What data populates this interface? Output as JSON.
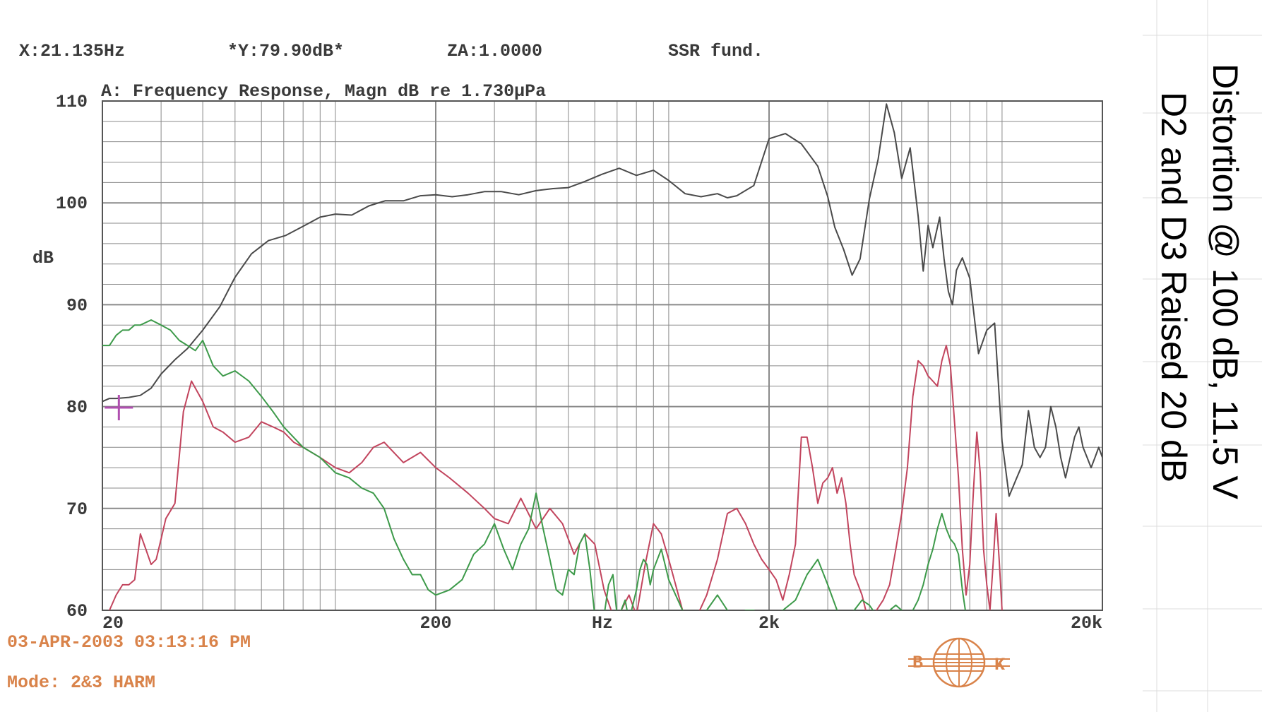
{
  "readouts": {
    "x": "X:21.135Hz",
    "y": "*Y:79.90dB*",
    "za": "ZA:1.0000",
    "mode_label": "SSR fund."
  },
  "footer": {
    "datetime": "03-APR-2003 03:13:16 PM",
    "mode": "Mode: 2&3 HARM",
    "logo_left": "B",
    "logo_right": "K"
  },
  "side_text": {
    "line1": "Distortion @ 100 dB, 11.5 V",
    "line2": "D2 and D3 Raised 20 dB"
  },
  "colors": {
    "grid": "#8a8a8a",
    "fundamental": "#4a4a4a",
    "d2": "#c2455e",
    "d3": "#3d9a4a",
    "cursor": "#b04fb0",
    "annotation": "#d9834a"
  },
  "chart_data": {
    "type": "line",
    "title": "A: Frequency Response, Magn dB re 1.730µPa",
    "xlabel": "Hz",
    "ylabel": "dB",
    "x_scale": "log",
    "xlim": [
      20,
      20000
    ],
    "ylim": [
      60,
      110
    ],
    "x_ticks": [
      {
        "value": 20,
        "label": "20"
      },
      {
        "value": 200,
        "label": "200"
      },
      {
        "value": 2000,
        "label": "2k"
      },
      {
        "value": 20000,
        "label": "20k"
      }
    ],
    "y_ticks": [
      {
        "value": 110,
        "label": "110"
      },
      {
        "value": 100,
        "label": "100"
      },
      {
        "value": 90,
        "label": "90"
      },
      {
        "value": 80,
        "label": "80"
      },
      {
        "value": 70,
        "label": "70"
      },
      {
        "value": 60,
        "label": "60"
      }
    ],
    "grid": true,
    "cursor": {
      "x": 21.135,
      "y": 79.9
    },
    "series": [
      {
        "key": "fundamental",
        "x": [
          20,
          21,
          22,
          24,
          26,
          28,
          30,
          33,
          36,
          40,
          45,
          50,
          56,
          63,
          71,
          80,
          90,
          100,
          112,
          126,
          141,
          160,
          180,
          200,
          224,
          250,
          280,
          315,
          355,
          400,
          450,
          500,
          560,
          630,
          710,
          800,
          900,
          1000,
          1120,
          1250,
          1400,
          1500,
          1600,
          1800,
          2000,
          2240,
          2500,
          2800,
          3000,
          3150,
          3350,
          3550,
          3750,
          4000,
          4250,
          4500,
          4750,
          5000,
          5300,
          5600,
          5800,
          6000,
          6200,
          6500,
          6700,
          6900,
          7100,
          7300,
          7600,
          8000,
          8500,
          9000,
          9500,
          10000,
          10500,
          11000,
          11500,
          12000,
          12500,
          13000,
          13500,
          14000,
          14500,
          15000,
          15500,
          16000,
          16500,
          17000,
          17500,
          18000,
          18500,
          19000,
          19500,
          20000
        ],
        "y": [
          80.5,
          80.8,
          80.8,
          80.9,
          81.1,
          81.8,
          83.2,
          84.6,
          85.7,
          87.5,
          89.8,
          92.7,
          95.0,
          96.3,
          96.8,
          97.7,
          98.6,
          98.9,
          98.8,
          99.7,
          100.2,
          100.2,
          100.7,
          100.8,
          100.6,
          100.8,
          101.1,
          101.1,
          100.8,
          101.2,
          101.4,
          101.5,
          102.1,
          102.8,
          103.4,
          102.7,
          103.2,
          102.2,
          100.9,
          100.6,
          100.9,
          100.5,
          100.7,
          101.7,
          106.3,
          106.8,
          105.8,
          103.6,
          100.6,
          97.6,
          95.4,
          92.9,
          94.5,
          100.4,
          104.3,
          109.7,
          106.9,
          102.4,
          105.4,
          98.7,
          93.3,
          97.8,
          95.6,
          98.6,
          94.5,
          91.3,
          90.0,
          93.4,
          94.6,
          92.6,
          85.2,
          87.5,
          88.2,
          76.6,
          71.2,
          72.8,
          74.3,
          79.6,
          76.0,
          75.0,
          76.0,
          80.0,
          78.0,
          75.0,
          73.0,
          75.0,
          77.0,
          78.0,
          76.0,
          75.0,
          74.0,
          75.0,
          76.0,
          75.0
        ]
      },
      {
        "key": "d2",
        "x": [
          20,
          21,
          22,
          23,
          24,
          25,
          26,
          27,
          28,
          29,
          30,
          31,
          33,
          35,
          37,
          40,
          43,
          46,
          50,
          55,
          60,
          65,
          70,
          75,
          80,
          90,
          100,
          110,
          120,
          130,
          140,
          160,
          180,
          200,
          220,
          250,
          280,
          300,
          330,
          360,
          400,
          440,
          480,
          520,
          560,
          600,
          640,
          680,
          720,
          760,
          800,
          850,
          900,
          950,
          1000,
          1100,
          1200,
          1300,
          1400,
          1500,
          1600,
          1700,
          1800,
          1900,
          2000,
          2100,
          2200,
          2300,
          2400,
          2500,
          2600,
          2700,
          2800,
          2900,
          3000,
          3100,
          3200,
          3300,
          3400,
          3500,
          3600,
          3700,
          3800,
          3900,
          4000,
          4200,
          4400,
          4600,
          4800,
          5000,
          5200,
          5400,
          5600,
          5800,
          6000,
          6200,
          6400,
          6600,
          6800,
          7000,
          7200,
          7400,
          7600,
          7800,
          8000,
          8200,
          8400,
          8600,
          8800,
          9000,
          9200,
          9400,
          9600,
          9800,
          10000
        ],
        "y": [
          59.5,
          60.0,
          61.5,
          62.5,
          62.5,
          63.0,
          67.5,
          66.0,
          64.5,
          65.0,
          67.0,
          69.0,
          70.5,
          79.5,
          82.5,
          80.5,
          78.0,
          77.5,
          76.5,
          77.0,
          78.5,
          78.0,
          77.5,
          76.5,
          76.0,
          75.0,
          74.0,
          73.5,
          74.5,
          76.0,
          76.5,
          74.5,
          75.5,
          74.0,
          73.0,
          71.5,
          70.0,
          69.0,
          68.5,
          71.0,
          68.0,
          70.0,
          68.5,
          65.5,
          67.5,
          66.5,
          62.0,
          59.5,
          60.0,
          61.5,
          59.5,
          64.5,
          68.5,
          67.5,
          65.0,
          60.0,
          59.0,
          61.5,
          65.0,
          69.5,
          70.0,
          68.5,
          66.5,
          65.0,
          64.0,
          63.0,
          61.0,
          63.5,
          66.5,
          77.0,
          77.0,
          74.0,
          70.5,
          72.5,
          73.0,
          74.0,
          71.5,
          73.0,
          70.5,
          66.5,
          63.5,
          62.5,
          61.5,
          60.0,
          59.5,
          60.0,
          61.0,
          62.5,
          66.0,
          69.5,
          74.0,
          81.0,
          84.5,
          84.0,
          83.0,
          82.5,
          82.0,
          84.5,
          86.0,
          84.0,
          78.5,
          73.0,
          66.0,
          61.5,
          64.5,
          71.5,
          77.5,
          73.5,
          66.0,
          62.5,
          60.0,
          64.5,
          69.5,
          65.0,
          60.0
        ]
      },
      {
        "key": "d3",
        "x": [
          20,
          21,
          22,
          23,
          24,
          25,
          26,
          28,
          30,
          32,
          34,
          36,
          38,
          40,
          43,
          46,
          50,
          55,
          60,
          65,
          70,
          80,
          90,
          100,
          110,
          120,
          130,
          140,
          150,
          160,
          170,
          180,
          190,
          200,
          220,
          240,
          260,
          280,
          300,
          320,
          340,
          360,
          380,
          400,
          420,
          440,
          460,
          480,
          500,
          520,
          540,
          560,
          580,
          600,
          620,
          640,
          660,
          680,
          700,
          720,
          740,
          760,
          780,
          800,
          820,
          840,
          860,
          880,
          900,
          950,
          1000,
          1100,
          1200,
          1300,
          1400,
          1500,
          1600,
          1700,
          1800,
          1900,
          2000,
          2200,
          2400,
          2600,
          2800,
          3000,
          3200,
          3400,
          3600,
          3800,
          4000,
          4200,
          4400,
          4600,
          4800,
          5000,
          5200,
          5400,
          5600,
          5800,
          6000,
          6200,
          6400,
          6600,
          6800,
          7000,
          7200,
          7400,
          7600,
          7800,
          8000
        ],
        "y": [
          86.0,
          86.0,
          87.0,
          87.5,
          87.5,
          88.0,
          88.0,
          88.5,
          88.0,
          87.5,
          86.5,
          86.0,
          85.5,
          86.5,
          84.0,
          83.0,
          83.5,
          82.5,
          81.0,
          79.5,
          78.0,
          76.0,
          75.0,
          73.5,
          73.0,
          72.0,
          71.5,
          70.0,
          67.0,
          65.0,
          63.5,
          63.5,
          62.0,
          61.5,
          62.0,
          63.0,
          65.5,
          66.5,
          68.5,
          66.0,
          64.0,
          66.5,
          68.0,
          71.5,
          68.0,
          65.0,
          62.0,
          61.5,
          64.0,
          63.5,
          66.5,
          67.5,
          64.0,
          59.5,
          60.0,
          59.5,
          62.5,
          63.5,
          59.5,
          60.0,
          61.0,
          59.0,
          60.5,
          62.0,
          64.0,
          65.0,
          64.5,
          62.5,
          64.0,
          66.0,
          63.0,
          60.0,
          59.0,
          60.0,
          61.5,
          60.0,
          59.0,
          60.0,
          60.0,
          59.5,
          59.5,
          60.0,
          61.0,
          63.5,
          65.0,
          62.5,
          60.0,
          59.5,
          60.0,
          61.0,
          60.5,
          59.5,
          59.0,
          60.0,
          60.5,
          60.0,
          59.5,
          60.0,
          61.0,
          62.5,
          64.5,
          66.0,
          68.0,
          69.5,
          68.0,
          67.0,
          66.5,
          65.5,
          62.0,
          59.5,
          60.0
        ]
      }
    ]
  }
}
